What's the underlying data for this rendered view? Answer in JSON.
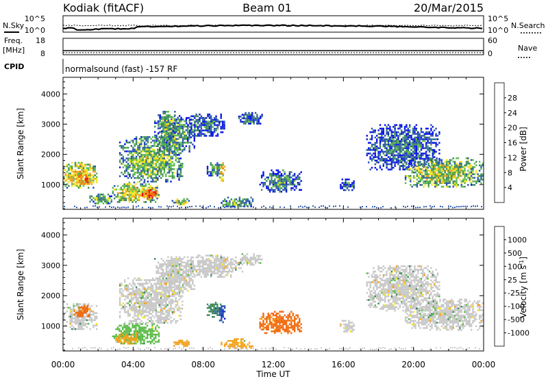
{
  "header": {
    "radar": "Kodiak (fitACF)",
    "beam": "Beam 01",
    "date": "20/Mar/2015"
  },
  "noise_panel": {
    "left_label": "N.Sky",
    "right_label": "N.Search",
    "left_ticks": [
      "10^5",
      "10^0"
    ],
    "right_ticks": [
      "10^5",
      "10^0"
    ]
  },
  "freq_panel": {
    "left_label_1": "Freq.",
    "left_label_2": "[MHz]",
    "right_label": "Nave",
    "left_ticks": [
      "18",
      "8"
    ],
    "right_ticks": [
      "60",
      "0"
    ]
  },
  "cpid": {
    "label": "CPID",
    "text": "normalsound (fast) -157 RF"
  },
  "colors": {
    "power_scale": [
      "#0a14e6",
      "#2a55b0",
      "#3f8a5c",
      "#5dbb4a",
      "#f2e420",
      "#f2a21c",
      "#f06a10",
      "#e81414"
    ],
    "velocity_scale": [
      "#e81414",
      "#f06a10",
      "#f2a21c",
      "#f2e420",
      "#c8c8c8",
      "#c8c8c8",
      "#5dbb4a",
      "#3f8a5c",
      "#2a55b0",
      "#0a14e6"
    ]
  },
  "chart_data": [
    {
      "type": "heatmap",
      "title": "",
      "quantity": "Power",
      "xlabel": "Time UT",
      "ylabel": "Slant Range [km]",
      "x_ticks": [
        "00:00",
        "04:00",
        "08:00",
        "12:00",
        "16:00",
        "20:00",
        "00:00"
      ],
      "xlim_hours": [
        0,
        24
      ],
      "y_ticks": [
        "1000",
        "2000",
        "3000",
        "4000"
      ],
      "ylim_km": [
        180,
        4550
      ],
      "colorbar_label": "Power [dB]",
      "colorbar_ticks": [
        "4",
        "8",
        "12",
        "16",
        "20",
        "24",
        "28"
      ],
      "colorbar_range": [
        0,
        32
      ],
      "regions": [
        {
          "t0": 0.0,
          "t1": 1.9,
          "r0": 900,
          "r1": 1750,
          "level": 20
        },
        {
          "t0": 0.8,
          "t1": 1.6,
          "r0": 1000,
          "r1": 1400,
          "level": 26
        },
        {
          "t0": 1.5,
          "t1": 2.8,
          "r0": 400,
          "r1": 700,
          "level": 14
        },
        {
          "t0": 2.8,
          "t1": 5.5,
          "r0": 400,
          "r1": 1100,
          "level": 18
        },
        {
          "t0": 4.4,
          "t1": 5.4,
          "r0": 500,
          "r1": 900,
          "level": 30
        },
        {
          "t0": 3.2,
          "t1": 6.8,
          "r0": 1100,
          "r1": 2600,
          "level": 14
        },
        {
          "t0": 5.2,
          "t1": 7.5,
          "r0": 2100,
          "r1": 3300,
          "level": 12
        },
        {
          "t0": 5.4,
          "t1": 6.4,
          "r0": 2600,
          "r1": 3500,
          "level": 14
        },
        {
          "t0": 6.2,
          "t1": 7.2,
          "r0": 350,
          "r1": 550,
          "level": 18
        },
        {
          "t0": 7.0,
          "t1": 9.2,
          "r0": 2600,
          "r1": 3350,
          "level": 8
        },
        {
          "t0": 8.2,
          "t1": 9.0,
          "r0": 1300,
          "r1": 1800,
          "level": 12
        },
        {
          "t0": 8.9,
          "t1": 9.2,
          "r0": 1100,
          "r1": 1800,
          "level": 22
        },
        {
          "t0": 9.0,
          "t1": 10.8,
          "r0": 250,
          "r1": 600,
          "level": 12
        },
        {
          "t0": 10.0,
          "t1": 11.4,
          "r0": 3000,
          "r1": 3400,
          "level": 8
        },
        {
          "t0": 11.2,
          "t1": 13.6,
          "r0": 750,
          "r1": 1500,
          "level": 10
        },
        {
          "t0": 15.8,
          "t1": 16.6,
          "r0": 800,
          "r1": 1200,
          "level": 8
        },
        {
          "t0": 17.3,
          "t1": 21.5,
          "r0": 1500,
          "r1": 3000,
          "level": 8
        },
        {
          "t0": 19.5,
          "t1": 24.0,
          "r0": 900,
          "r1": 1900,
          "level": 16
        }
      ]
    },
    {
      "type": "heatmap",
      "title": "",
      "quantity": "Velocity",
      "xlabel": "Time UT",
      "ylabel": "Slant Range [km]",
      "x_ticks": [
        "00:00",
        "04:00",
        "08:00",
        "12:00",
        "16:00",
        "20:00",
        "00:00"
      ],
      "xlim_hours": [
        0,
        24
      ],
      "y_ticks": [
        "1000",
        "2000",
        "3000",
        "4000"
      ],
      "ylim_km": [
        180,
        4550
      ],
      "colorbar_label": "Velocity [m s^-1]",
      "colorbar_ticks": [
        "1000",
        "500",
        "100",
        "25",
        "-25",
        "-100",
        "-500",
        "-1000"
      ],
      "regions": [
        {
          "t0": 0.0,
          "t1": 1.9,
          "r0": 900,
          "r1": 1750,
          "level": 25
        },
        {
          "t0": 0.6,
          "t1": 1.5,
          "r0": 1300,
          "r1": 1700,
          "level": -500
        },
        {
          "t0": 2.8,
          "t1": 5.5,
          "r0": 400,
          "r1": 1100,
          "level": 100
        },
        {
          "t0": 3.0,
          "t1": 4.2,
          "r0": 400,
          "r1": 800,
          "level": -100
        },
        {
          "t0": 3.2,
          "t1": 6.8,
          "r0": 1100,
          "r1": 2600,
          "level": 0
        },
        {
          "t0": 5.2,
          "t1": 7.5,
          "r0": 2100,
          "r1": 3300,
          "level": 0
        },
        {
          "t0": 6.2,
          "t1": 7.2,
          "r0": 350,
          "r1": 550,
          "level": -100
        },
        {
          "t0": 7.0,
          "t1": 10.2,
          "r0": 2600,
          "r1": 3350,
          "level": 0
        },
        {
          "t0": 8.2,
          "t1": 9.0,
          "r0": 1300,
          "r1": 1800,
          "level": 500
        },
        {
          "t0": 8.9,
          "t1": 9.2,
          "r0": 1100,
          "r1": 1800,
          "level": 1000
        },
        {
          "t0": 9.0,
          "t1": 10.8,
          "r0": 250,
          "r1": 600,
          "level": -100
        },
        {
          "t0": 10.0,
          "t1": 11.4,
          "r0": 3000,
          "r1": 3400,
          "level": 0
        },
        {
          "t0": 11.2,
          "t1": 13.6,
          "r0": 750,
          "r1": 1500,
          "level": -500
        },
        {
          "t0": 15.8,
          "t1": 16.6,
          "r0": 800,
          "r1": 1200,
          "level": 0
        },
        {
          "t0": 17.3,
          "t1": 21.5,
          "r0": 1500,
          "r1": 3000,
          "level": 0
        },
        {
          "t0": 19.5,
          "t1": 24.0,
          "r0": 900,
          "r1": 1900,
          "level": 0
        }
      ]
    }
  ]
}
